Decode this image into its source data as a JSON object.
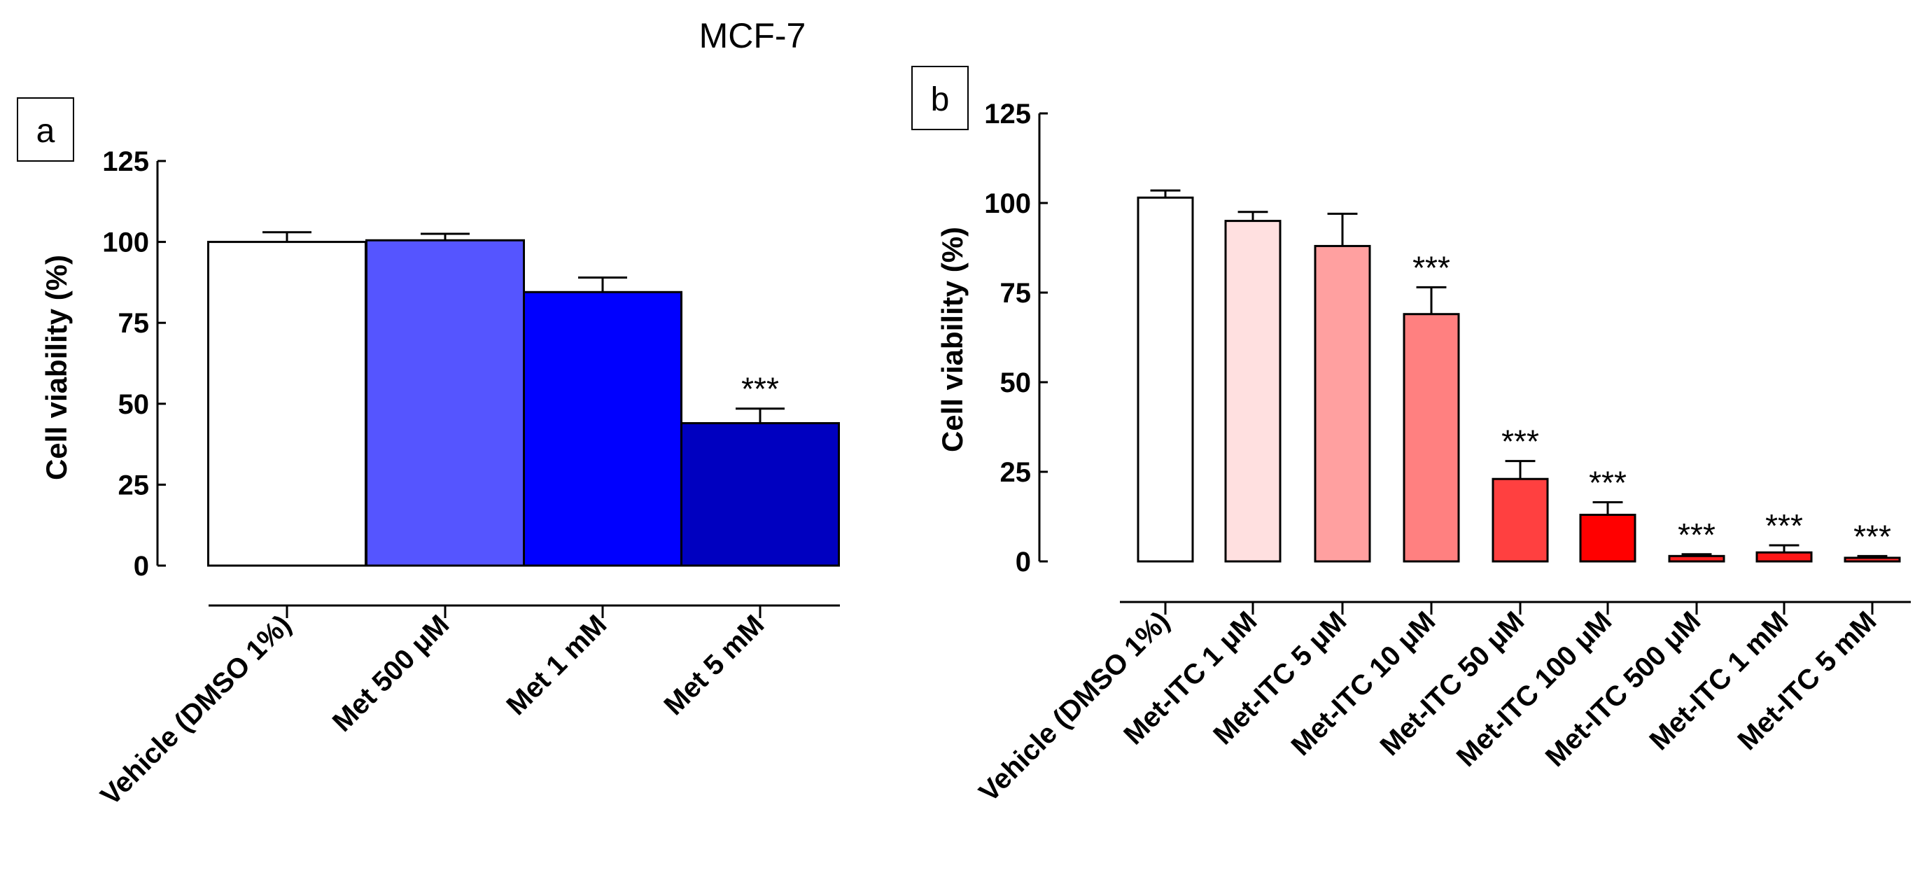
{
  "figure_title": "MCF-7",
  "colors": {
    "axis": "#000000",
    "bar_stroke": "#000000"
  },
  "chart_data": [
    {
      "panel": "a",
      "type": "bar",
      "title": "",
      "xlabel": "",
      "ylabel": "Cell viability (%)",
      "ylim": [
        0,
        125
      ],
      "yticks": [
        "0",
        "25",
        "50",
        "75",
        "100",
        "125"
      ],
      "categories": [
        "Vehicle (DMSO 1%)",
        "Met 500 μM",
        "Met 1 mM",
        "Met 5 mM"
      ],
      "values": [
        100,
        100.5,
        84.5,
        44
      ],
      "errors": [
        3,
        2,
        4.5,
        4.5
      ],
      "significance": [
        "",
        "",
        "",
        "***"
      ],
      "colors": [
        "#ffffff",
        "#5555ff",
        "#0000ff",
        "#0000c0"
      ]
    },
    {
      "panel": "b",
      "type": "bar",
      "title": "",
      "xlabel": "",
      "ylabel": "Cell viability (%)",
      "ylim": [
        0,
        125
      ],
      "yticks": [
        "0",
        "25",
        "50",
        "75",
        "100",
        "125"
      ],
      "categories": [
        "Vehicle (DMSO 1%)",
        "Met-ITC 1 μM",
        "Met-ITC 5 μM",
        "Met-ITC 10 μM",
        "Met-ITC 50 μM",
        "Met-ITC 100 μM",
        "Met-ITC 500 μM",
        "Met-ITC 1 mM",
        "Met-ITC 5 mM"
      ],
      "values": [
        101.5,
        95,
        88,
        69,
        23,
        13,
        1.5,
        2.5,
        1
      ],
      "errors": [
        2,
        2.5,
        9,
        7.5,
        5,
        3.5,
        0.5,
        2,
        0.5
      ],
      "significance": [
        "",
        "",
        "",
        "***",
        "***",
        "***",
        "***",
        "***",
        "***"
      ],
      "colors": [
        "#ffffff",
        "#ffe0e0",
        "#ffa0a0",
        "#ff8080",
        "#ff4040",
        "#ff0000",
        "#ff2020",
        "#ff1818",
        "#ff2a2a"
      ]
    }
  ]
}
